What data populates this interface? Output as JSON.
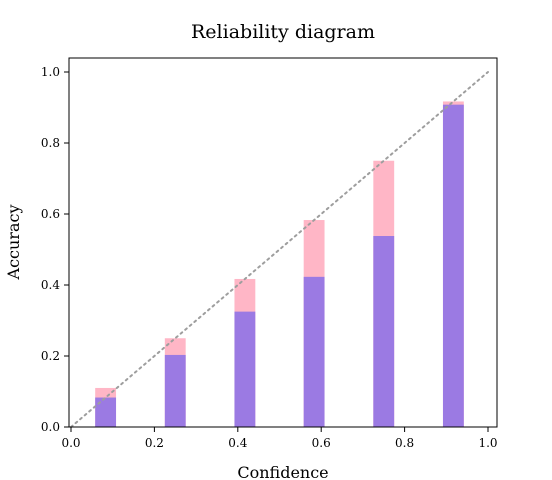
{
  "chart_data": {
    "type": "bar",
    "title": "Reliability diagram",
    "xlabel": "Confidence",
    "ylabel": "Accuracy",
    "xlim": [
      0.0,
      1.0
    ],
    "ylim": [
      0.0,
      1.0
    ],
    "xticks": [
      "0.0",
      "0.2",
      "0.4",
      "0.6",
      "0.8",
      "1.0"
    ],
    "yticks": [
      "0.0",
      "0.2",
      "0.4",
      "0.6",
      "0.8",
      "1.0"
    ],
    "grid": false,
    "bin_width": 0.05,
    "bins": [
      {
        "center": 0.083,
        "confidence": 0.11,
        "accuracy": 0.083
      },
      {
        "center": 0.25,
        "confidence": 0.25,
        "accuracy": 0.203
      },
      {
        "center": 0.417,
        "confidence": 0.417,
        "accuracy": 0.325
      },
      {
        "center": 0.583,
        "confidence": 0.583,
        "accuracy": 0.423
      },
      {
        "center": 0.75,
        "confidence": 0.75,
        "accuracy": 0.538
      },
      {
        "center": 0.917,
        "confidence": 0.917,
        "accuracy": 0.908
      }
    ],
    "diagonal": true,
    "colors": {
      "accuracy": "#9b7ae3",
      "gap_over": "#ffb6c6",
      "gap_under": "#8c9cf4",
      "diagonal": "#9e9e9e"
    }
  }
}
